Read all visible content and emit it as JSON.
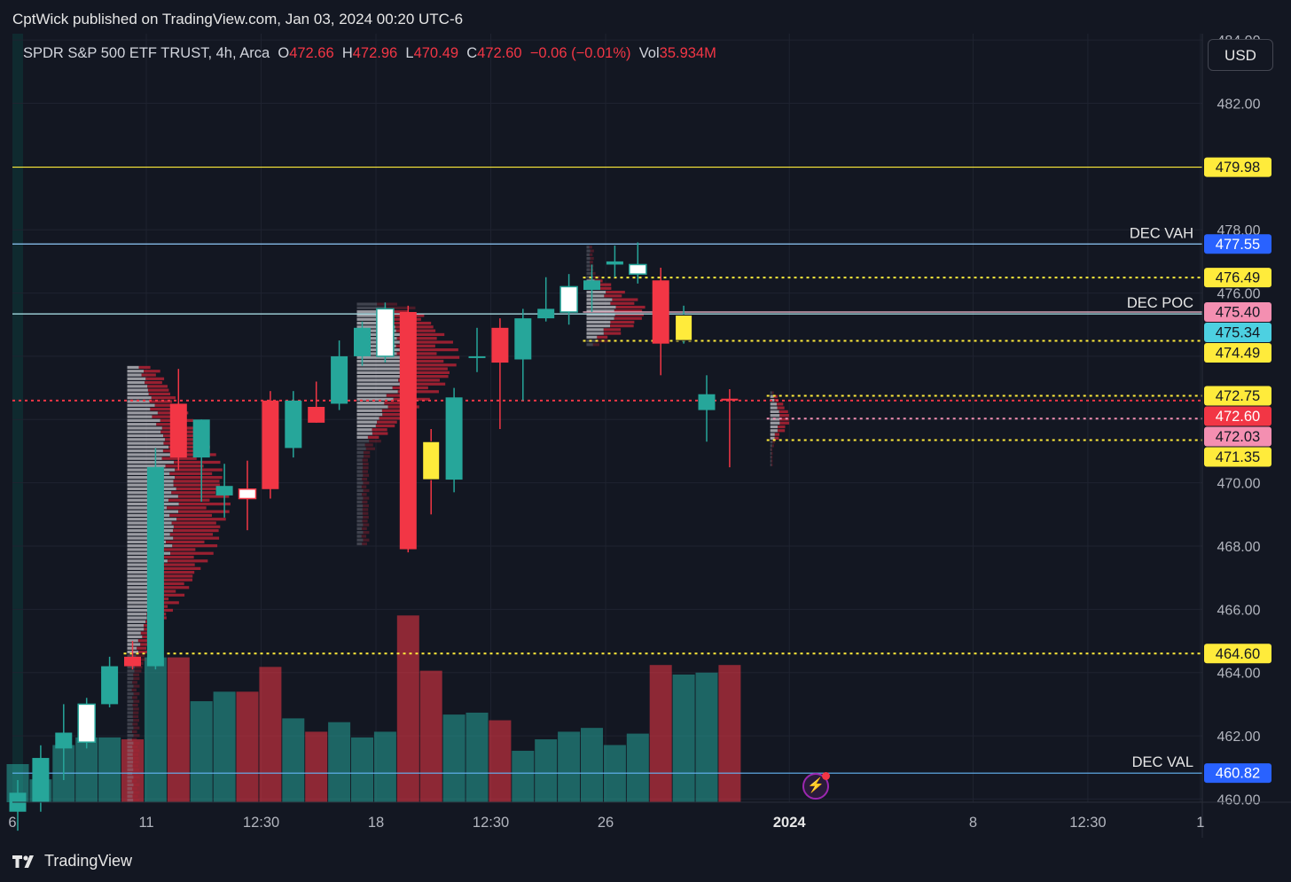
{
  "header": {
    "publish_text": "CptWick published on TradingView.com, Jan 03, 2024 00:20 UTC-6"
  },
  "legend": {
    "symbol": "SPDR S&P 500 ETF TRUST, 4h, Arca",
    "open_label": "O",
    "open": "472.66",
    "high_label": "H",
    "high": "472.96",
    "low_label": "L",
    "low": "470.49",
    "close_label": "C",
    "close": "472.60",
    "change": "−0.06 (−0.01%)",
    "vol_label": "Vol",
    "vol": "35.934M"
  },
  "currency_button": "USD",
  "footer": {
    "brand": "TradingView"
  },
  "colors": {
    "background": "#131722",
    "bull": "#26a69a",
    "bear": "#f23645",
    "level_yellow": "#ffeb3b",
    "level_blue": "#2962ff",
    "level_cyan": "#4dd0e1",
    "level_pink": "#f48fb1"
  },
  "icons": {
    "alert": "lightning-bolt-icon"
  },
  "chart_data": {
    "type": "candlestick",
    "symbol": "SPY",
    "timeframe": "4h",
    "ylim": [
      459.9,
      484.2
    ],
    "y_ticks": [
      "460.00",
      "462.00",
      "464.00",
      "466.00",
      "468.00",
      "470.00",
      "472.00",
      "474.00",
      "476.00",
      "478.00",
      "482.00",
      "484.00"
    ],
    "x_ticks": [
      {
        "label": "6",
        "index": -5.5
      },
      {
        "label": "11",
        "index": 5.6
      },
      {
        "label": "12:30",
        "index": 10.6
      },
      {
        "label": "18",
        "index": 15.6
      },
      {
        "label": "12:30",
        "index": 20.6
      },
      {
        "label": "26",
        "index": 25.6
      },
      {
        "label": "2024",
        "index": 33.6,
        "bold": true
      },
      {
        "label": "8",
        "index": 41.6
      },
      {
        "label": "12:30",
        "index": 46.6
      },
      {
        "label": "1",
        "index": 51.5
      }
    ],
    "candles": [
      {
        "o": 459.6,
        "h": 460.6,
        "l": 459.0,
        "c": 460.2,
        "v": 0.2,
        "color": "bull"
      },
      {
        "o": 459.9,
        "h": 461.7,
        "l": 459.6,
        "c": 461.3,
        "v": 0.12,
        "color": "bull"
      },
      {
        "o": 461.6,
        "h": 463.0,
        "l": 460.6,
        "c": 462.1,
        "v": 0.3,
        "color": "bull"
      },
      {
        "o": 461.8,
        "h": 463.2,
        "l": 461.6,
        "c": 463.0,
        "v": 0.34,
        "color": "white"
      },
      {
        "o": 463.0,
        "h": 464.5,
        "l": 462.9,
        "c": 464.2,
        "v": 0.34,
        "color": "bull"
      },
      {
        "o": 464.5,
        "h": 465.0,
        "l": 464.1,
        "c": 464.2,
        "v": 0.33,
        "color": "bear"
      },
      {
        "o": 464.2,
        "h": 471.1,
        "l": 464.1,
        "c": 470.5,
        "v": 0.76,
        "color": "bull"
      },
      {
        "o": 472.5,
        "h": 473.6,
        "l": 470.4,
        "c": 470.8,
        "v": 0.76,
        "color": "bear"
      },
      {
        "o": 470.8,
        "h": 472.0,
        "l": 469.4,
        "c": 472.0,
        "v": 0.53,
        "color": "bull"
      },
      {
        "o": 469.6,
        "h": 470.6,
        "l": 468.9,
        "c": 469.9,
        "v": 0.58,
        "color": "bull"
      },
      {
        "o": 469.8,
        "h": 470.7,
        "l": 468.5,
        "c": 469.5,
        "v": 0.58,
        "color": "white"
      },
      {
        "o": 472.6,
        "h": 472.9,
        "l": 469.5,
        "c": 469.8,
        "v": 0.71,
        "color": "bear"
      },
      {
        "o": 471.1,
        "h": 472.9,
        "l": 470.8,
        "c": 472.6,
        "v": 0.44,
        "color": "bull"
      },
      {
        "o": 472.4,
        "h": 473.2,
        "l": 471.9,
        "c": 471.9,
        "v": 0.37,
        "color": "bear"
      },
      {
        "o": 472.5,
        "h": 474.5,
        "l": 472.3,
        "c": 474.0,
        "v": 0.42,
        "color": "bull"
      },
      {
        "o": 474.0,
        "h": 475.1,
        "l": 473.7,
        "c": 474.9,
        "v": 0.34,
        "color": "bull"
      },
      {
        "o": 474.0,
        "h": 475.7,
        "l": 473.8,
        "c": 475.5,
        "v": 0.37,
        "color": "white"
      },
      {
        "o": 475.4,
        "h": 475.6,
        "l": 467.8,
        "c": 467.9,
        "v": 0.98,
        "color": "bear"
      },
      {
        "o": 471.3,
        "h": 471.7,
        "l": 469.0,
        "c": 470.1,
        "v": 0.69,
        "color": "yellow"
      },
      {
        "o": 470.1,
        "h": 473.0,
        "l": 469.7,
        "c": 472.7,
        "v": 0.46,
        "color": "bull"
      },
      {
        "o": 474.0,
        "h": 474.9,
        "l": 473.5,
        "c": 474.0,
        "v": 0.47,
        "color": "bull"
      },
      {
        "o": 474.9,
        "h": 475.2,
        "l": 471.7,
        "c": 473.8,
        "v": 0.43,
        "color": "bear"
      },
      {
        "o": 473.9,
        "h": 475.5,
        "l": 472.6,
        "c": 475.2,
        "v": 0.27,
        "color": "bull"
      },
      {
        "o": 475.2,
        "h": 476.5,
        "l": 475.1,
        "c": 475.5,
        "v": 0.33,
        "color": "bull"
      },
      {
        "o": 475.4,
        "h": 476.6,
        "l": 475.0,
        "c": 476.2,
        "v": 0.37,
        "color": "white"
      },
      {
        "o": 476.1,
        "h": 476.9,
        "l": 475.4,
        "c": 476.4,
        "v": 0.39,
        "color": "bull"
      },
      {
        "o": 476.9,
        "h": 477.5,
        "l": 476.5,
        "c": 477.0,
        "v": 0.3,
        "color": "bull"
      },
      {
        "o": 476.6,
        "h": 477.6,
        "l": 476.3,
        "c": 476.9,
        "v": 0.36,
        "color": "white"
      },
      {
        "o": 476.4,
        "h": 476.8,
        "l": 473.4,
        "c": 474.4,
        "v": 0.72,
        "color": "bear"
      },
      {
        "o": 474.5,
        "h": 475.6,
        "l": 474.4,
        "c": 475.3,
        "v": 0.67,
        "color": "yellow"
      },
      {
        "o": 472.3,
        "h": 473.4,
        "l": 471.3,
        "c": 472.8,
        "v": 0.68,
        "color": "bull"
      },
      {
        "o": 472.66,
        "h": 472.96,
        "l": 470.49,
        "c": 472.6,
        "v": 0.72,
        "color": "bear"
      }
    ],
    "levels": [
      {
        "price": 479.98,
        "label": "479.98",
        "name": "",
        "style": "solid",
        "color": "#ffeb3b",
        "badge_bg": "#ffeb3b",
        "badge_fg": "#131722",
        "from_index": -99
      },
      {
        "price": 477.55,
        "label": "477.55",
        "name": "DEC VAH",
        "style": "solid",
        "color": "#90caf9",
        "badge_bg": "#2962ff",
        "badge_fg": "#ffffff",
        "from_index": -99
      },
      {
        "price": 476.49,
        "label": "476.49",
        "name": "",
        "style": "dotted",
        "color": "#ffeb3b",
        "badge_bg": "#ffeb3b",
        "badge_fg": "#131722",
        "from_index": 25
      },
      {
        "price": 475.4,
        "label": "475.40",
        "name": "",
        "style": "solid",
        "color": "#f8bbd0",
        "badge_bg": "#f48fb1",
        "badge_fg": "#131722",
        "from_index": 25
      },
      {
        "price": 475.34,
        "label": "475.34",
        "name": "DEC POC",
        "style": "solid",
        "color": "#b2ebf2",
        "badge_bg": "#4dd0e1",
        "badge_fg": "#131722",
        "from_index": -99
      },
      {
        "price": 474.49,
        "label": "474.49",
        "name": "",
        "style": "dotted",
        "color": "#ffeb3b",
        "badge_bg": "#ffeb3b",
        "badge_fg": "#131722",
        "from_index": 25
      },
      {
        "price": 472.75,
        "label": "472.75",
        "name": "",
        "style": "dotted",
        "color": "#ffeb3b",
        "badge_bg": "#ffeb3b",
        "badge_fg": "#131722",
        "from_index": 33
      },
      {
        "price": 472.6,
        "label": "472.60",
        "name": "",
        "style": "dotted",
        "color": "#f23645",
        "badge_bg": "#f23645",
        "badge_fg": "#ffffff",
        "from_index": -99
      },
      {
        "price": 472.03,
        "label": "472.03",
        "name": "",
        "style": "dotted",
        "color": "#f48fb1",
        "badge_bg": "#f48fb1",
        "badge_fg": "#131722",
        "from_index": 33
      },
      {
        "price": 471.35,
        "label": "471.35",
        "name": "",
        "style": "dotted",
        "color": "#ffeb3b",
        "badge_bg": "#ffeb3b",
        "badge_fg": "#131722",
        "from_index": 33
      },
      {
        "price": 464.6,
        "label": "464.60",
        "name": "",
        "style": "dotted",
        "color": "#ffeb3b",
        "badge_bg": "#ffeb3b",
        "badge_fg": "#131722",
        "from_index": 5
      },
      {
        "price": 460.82,
        "label": "460.82",
        "name": "DEC VAL",
        "style": "solid",
        "color": "#64b5f6",
        "badge_bg": "#2962ff",
        "badge_fg": "#ffffff",
        "from_index": -99
      }
    ],
    "profile_segments": [
      {
        "from_index": 5,
        "to_index": 14,
        "top": 473.7,
        "bottom": 459.9,
        "val_high": 473.7,
        "val_low": 464.6,
        "poc": 469.4
      },
      {
        "from_index": 15,
        "to_index": 24,
        "top": 475.7,
        "bottom": 468.0,
        "val_high": 475.5,
        "val_low": 471.35,
        "poc": 473.9
      },
      {
        "from_index": 25,
        "to_index": 30,
        "top": 477.5,
        "bottom": 474.3,
        "val_high": 476.49,
        "val_low": 474.49,
        "poc": 475.4
      },
      {
        "from_index": 33,
        "to_index": 34,
        "top": 472.9,
        "bottom": 470.5,
        "val_high": 472.75,
        "val_low": 471.35,
        "poc": 472.03
      }
    ]
  }
}
